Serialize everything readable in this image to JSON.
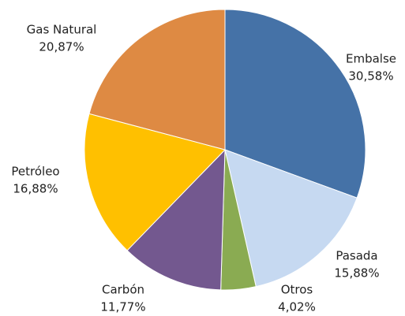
{
  "chart_data": {
    "type": "pie",
    "categories": [
      "Embalse",
      "Pasada",
      "Otros",
      "Carbón",
      "Petróleo",
      "Gas Natural"
    ],
    "values": [
      30.58,
      15.88,
      4.02,
      11.77,
      16.88,
      20.87
    ],
    "value_labels": [
      "30,58%",
      "15,88%",
      "4,02%",
      "11,77%",
      "16,88%",
      "20,87%"
    ],
    "colors": [
      "#4572a7",
      "#c6d9f1",
      "#8aab52",
      "#73588f",
      "#ffc000",
      "#de8a43"
    ]
  }
}
